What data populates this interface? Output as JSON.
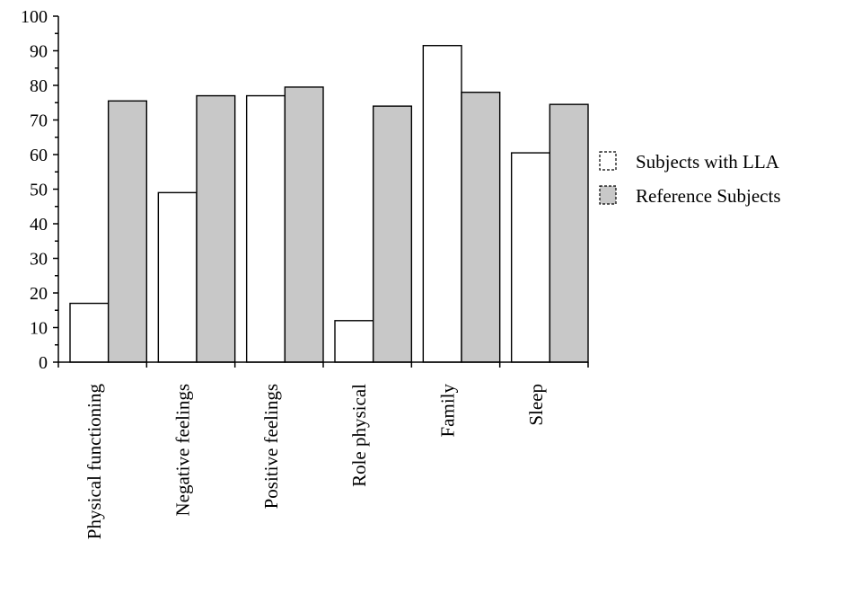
{
  "chart_data": {
    "type": "bar",
    "title": "",
    "xlabel": "",
    "ylabel": "",
    "ylim": [
      0,
      100
    ],
    "yticks": [
      0,
      10,
      20,
      30,
      40,
      50,
      60,
      70,
      80,
      90,
      100
    ],
    "grid": false,
    "legend_position": "right",
    "categories": [
      "Physical functioning",
      "Negative feelings",
      "Positive feelings",
      "Role physical",
      "Family",
      "Sleep"
    ],
    "series": [
      {
        "name": "Subjects with LLA",
        "color": "#ffffff",
        "values": [
          17,
          49,
          77,
          12,
          91.5,
          60.5
        ]
      },
      {
        "name": "Reference Subjects",
        "color": "#c8c8c8",
        "values": [
          75.5,
          77,
          79.5,
          74,
          78,
          74.5
        ]
      }
    ]
  }
}
